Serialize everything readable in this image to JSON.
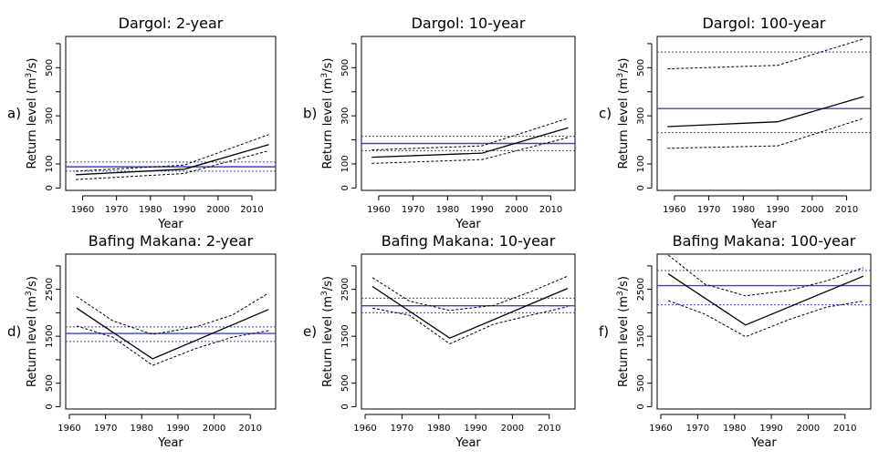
{
  "colors": {
    "line": "#000000",
    "reference": "#3f3fd6",
    "frame": "#000000"
  },
  "chart_data": [
    {
      "panel_label": "a)",
      "title": "Dargol: 2-year",
      "type": "line",
      "xlabel": "Year",
      "ylabel": "Return level (m3/s)",
      "ylabel_main": "Return level (m",
      "ylabel_sup": "3",
      "ylabel_tail": "/s)",
      "xlim": [
        1955,
        2017
      ],
      "ylim": [
        -10,
        630
      ],
      "x_ticks": [
        1960,
        1970,
        1980,
        1990,
        2000,
        2010
      ],
      "y_ticks": [
        0,
        100,
        300,
        500
      ],
      "y_minor_ticks": [
        200,
        400,
        600
      ],
      "series": [
        {
          "role": "estimate",
          "style": "solid",
          "x": [
            1958,
            1990,
            2015
          ],
          "y": [
            55,
            78,
            180
          ]
        },
        {
          "role": "upper",
          "style": "dashed",
          "x": [
            1958,
            1990,
            2015
          ],
          "y": [
            70,
            95,
            222
          ]
        },
        {
          "role": "lower",
          "style": "dashed",
          "x": [
            1958,
            1990,
            2015
          ],
          "y": [
            35,
            60,
            155
          ]
        }
      ],
      "reference_lines": [
        {
          "role": "estimate",
          "style": "solid",
          "y": 88
        },
        {
          "role": "upper",
          "style": "dotted",
          "y": 108
        },
        {
          "role": "lower",
          "style": "dotted",
          "y": 70
        }
      ]
    },
    {
      "panel_label": "b)",
      "title": "Dargol: 10-year",
      "type": "line",
      "xlabel": "Year",
      "ylabel": "Return level (m3/s)",
      "ylabel_main": "Return level (m",
      "ylabel_sup": "3",
      "ylabel_tail": "/s)",
      "xlim": [
        1955,
        2017
      ],
      "ylim": [
        -10,
        630
      ],
      "x_ticks": [
        1960,
        1970,
        1980,
        1990,
        2000,
        2010
      ],
      "y_ticks": [
        0,
        100,
        300,
        500
      ],
      "y_minor_ticks": [
        200,
        400,
        600
      ],
      "series": [
        {
          "role": "estimate",
          "style": "solid",
          "x": [
            1958,
            1990,
            2015
          ],
          "y": [
            128,
            145,
            250
          ]
        },
        {
          "role": "upper",
          "style": "dashed",
          "x": [
            1958,
            1990,
            2015
          ],
          "y": [
            158,
            175,
            290
          ]
        },
        {
          "role": "lower",
          "style": "dashed",
          "x": [
            1958,
            1990,
            2015
          ],
          "y": [
            102,
            118,
            210
          ]
        }
      ],
      "reference_lines": [
        {
          "role": "estimate",
          "style": "solid",
          "y": 185
        },
        {
          "role": "upper",
          "style": "dotted",
          "y": 215
        },
        {
          "role": "lower",
          "style": "dotted",
          "y": 155
        }
      ]
    },
    {
      "panel_label": "c)",
      "title": "Dargol: 100-year",
      "type": "line",
      "xlabel": "Year",
      "ylabel": "Return level (m3/s)",
      "ylabel_main": "Return level (m",
      "ylabel_sup": "3",
      "ylabel_tail": "/s)",
      "xlim": [
        1955,
        2017
      ],
      "ylim": [
        -10,
        630
      ],
      "x_ticks": [
        1960,
        1970,
        1980,
        1990,
        2000,
        2010
      ],
      "y_ticks": [
        0,
        100,
        300,
        500
      ],
      "y_minor_ticks": [
        200,
        400,
        600
      ],
      "series": [
        {
          "role": "estimate",
          "style": "solid",
          "x": [
            1958,
            1990,
            2015
          ],
          "y": [
            255,
            275,
            380
          ]
        },
        {
          "role": "upper",
          "style": "dashed",
          "x": [
            1958,
            1990,
            2015
          ],
          "y": [
            495,
            510,
            620
          ]
        },
        {
          "role": "lower",
          "style": "dashed",
          "x": [
            1958,
            1990,
            2015
          ],
          "y": [
            165,
            175,
            290
          ]
        }
      ],
      "reference_lines": [
        {
          "role": "estimate",
          "style": "solid",
          "y": 330
        },
        {
          "role": "upper",
          "style": "dotted",
          "y": 565
        },
        {
          "role": "lower",
          "style": "dotted",
          "y": 230
        }
      ]
    },
    {
      "panel_label": "d)",
      "title": "Bafing Makana: 2-year",
      "type": "line",
      "xlabel": "Year",
      "ylabel": "Return level (m3/s)",
      "ylabel_main": "Return level (m",
      "ylabel_sup": "3",
      "ylabel_tail": "/s)",
      "xlim": [
        1959,
        2017
      ],
      "ylim": [
        -50,
        3250
      ],
      "x_ticks": [
        1960,
        1970,
        1980,
        1990,
        2000,
        2010
      ],
      "y_ticks": [
        0,
        500,
        1500,
        2500
      ],
      "y_minor_ticks": [
        1000,
        2000,
        3000
      ],
      "series": [
        {
          "role": "estimate",
          "style": "solid",
          "x": [
            1962,
            1983,
            2015
          ],
          "y": [
            2100,
            1020,
            2070
          ]
        },
        {
          "role": "upper",
          "style": "dashed",
          "x": [
            1962,
            1972,
            1983,
            1995,
            2005,
            2015
          ],
          "y": [
            2350,
            1830,
            1540,
            1700,
            1950,
            2420
          ]
        },
        {
          "role": "lower",
          "style": "dashed",
          "x": [
            1962,
            1972,
            1983,
            1995,
            2005,
            2015
          ],
          "y": [
            1720,
            1480,
            880,
            1240,
            1480,
            1620
          ]
        }
      ],
      "reference_lines": [
        {
          "role": "estimate",
          "style": "solid",
          "y": 1560
        },
        {
          "role": "upper",
          "style": "dotted",
          "y": 1700
        },
        {
          "role": "lower",
          "style": "dotted",
          "y": 1390
        }
      ]
    },
    {
      "panel_label": "e)",
      "title": "Bafing Makana: 10-year",
      "type": "line",
      "xlabel": "Year",
      "ylabel": "Return level (m3/s)",
      "ylabel_main": "Return level (m",
      "ylabel_sup": "3",
      "ylabel_tail": "/s)",
      "xlim": [
        1959,
        2017
      ],
      "ylim": [
        -50,
        3250
      ],
      "x_ticks": [
        1960,
        1970,
        1980,
        1990,
        2000,
        2010
      ],
      "y_ticks": [
        0,
        500,
        1500,
        2500
      ],
      "y_minor_ticks": [
        1000,
        2000,
        3000
      ],
      "series": [
        {
          "role": "estimate",
          "style": "solid",
          "x": [
            1962,
            1983,
            2015
          ],
          "y": [
            2560,
            1460,
            2520
          ]
        },
        {
          "role": "upper",
          "style": "dashed",
          "x": [
            1962,
            1972,
            1983,
            1995,
            2005,
            2015
          ],
          "y": [
            2750,
            2250,
            2050,
            2160,
            2450,
            2780
          ]
        },
        {
          "role": "lower",
          "style": "dashed",
          "x": [
            1962,
            1972,
            1983,
            1995,
            2005,
            2015
          ],
          "y": [
            2100,
            1950,
            1340,
            1760,
            1950,
            2130
          ]
        }
      ],
      "reference_lines": [
        {
          "role": "estimate",
          "style": "solid",
          "y": 2150
        },
        {
          "role": "upper",
          "style": "dotted",
          "y": 2310
        },
        {
          "role": "lower",
          "style": "dotted",
          "y": 2000
        }
      ]
    },
    {
      "panel_label": "f)",
      "title": "Bafing Makana: 100-year",
      "type": "line",
      "xlabel": "Year",
      "ylabel": "Return level (m3/s)",
      "ylabel_main": "Return level (m",
      "ylabel_sup": "3",
      "ylabel_tail": "/s)",
      "xlim": [
        1959,
        2017
      ],
      "ylim": [
        -50,
        3250
      ],
      "x_ticks": [
        1960,
        1970,
        1980,
        1990,
        2000,
        2010
      ],
      "y_ticks": [
        0,
        500,
        1500,
        2500
      ],
      "y_minor_ticks": [
        1000,
        2000,
        3000
      ],
      "series": [
        {
          "role": "estimate",
          "style": "solid",
          "x": [
            1962,
            1983,
            2015
          ],
          "y": [
            2830,
            1740,
            2780
          ]
        },
        {
          "role": "upper",
          "style": "dashed",
          "x": [
            1962,
            1972,
            1983,
            1995,
            2005,
            2015
          ],
          "y": [
            3230,
            2610,
            2360,
            2480,
            2680,
            2960
          ]
        },
        {
          "role": "lower",
          "style": "dashed",
          "x": [
            1962,
            1972,
            1983,
            1995,
            2005,
            2015
          ],
          "y": [
            2260,
            1970,
            1490,
            1860,
            2120,
            2250
          ]
        }
      ],
      "reference_lines": [
        {
          "role": "estimate",
          "style": "solid",
          "y": 2580
        },
        {
          "role": "upper",
          "style": "dotted",
          "y": 2900
        },
        {
          "role": "lower",
          "style": "dotted",
          "y": 2170
        }
      ]
    }
  ]
}
